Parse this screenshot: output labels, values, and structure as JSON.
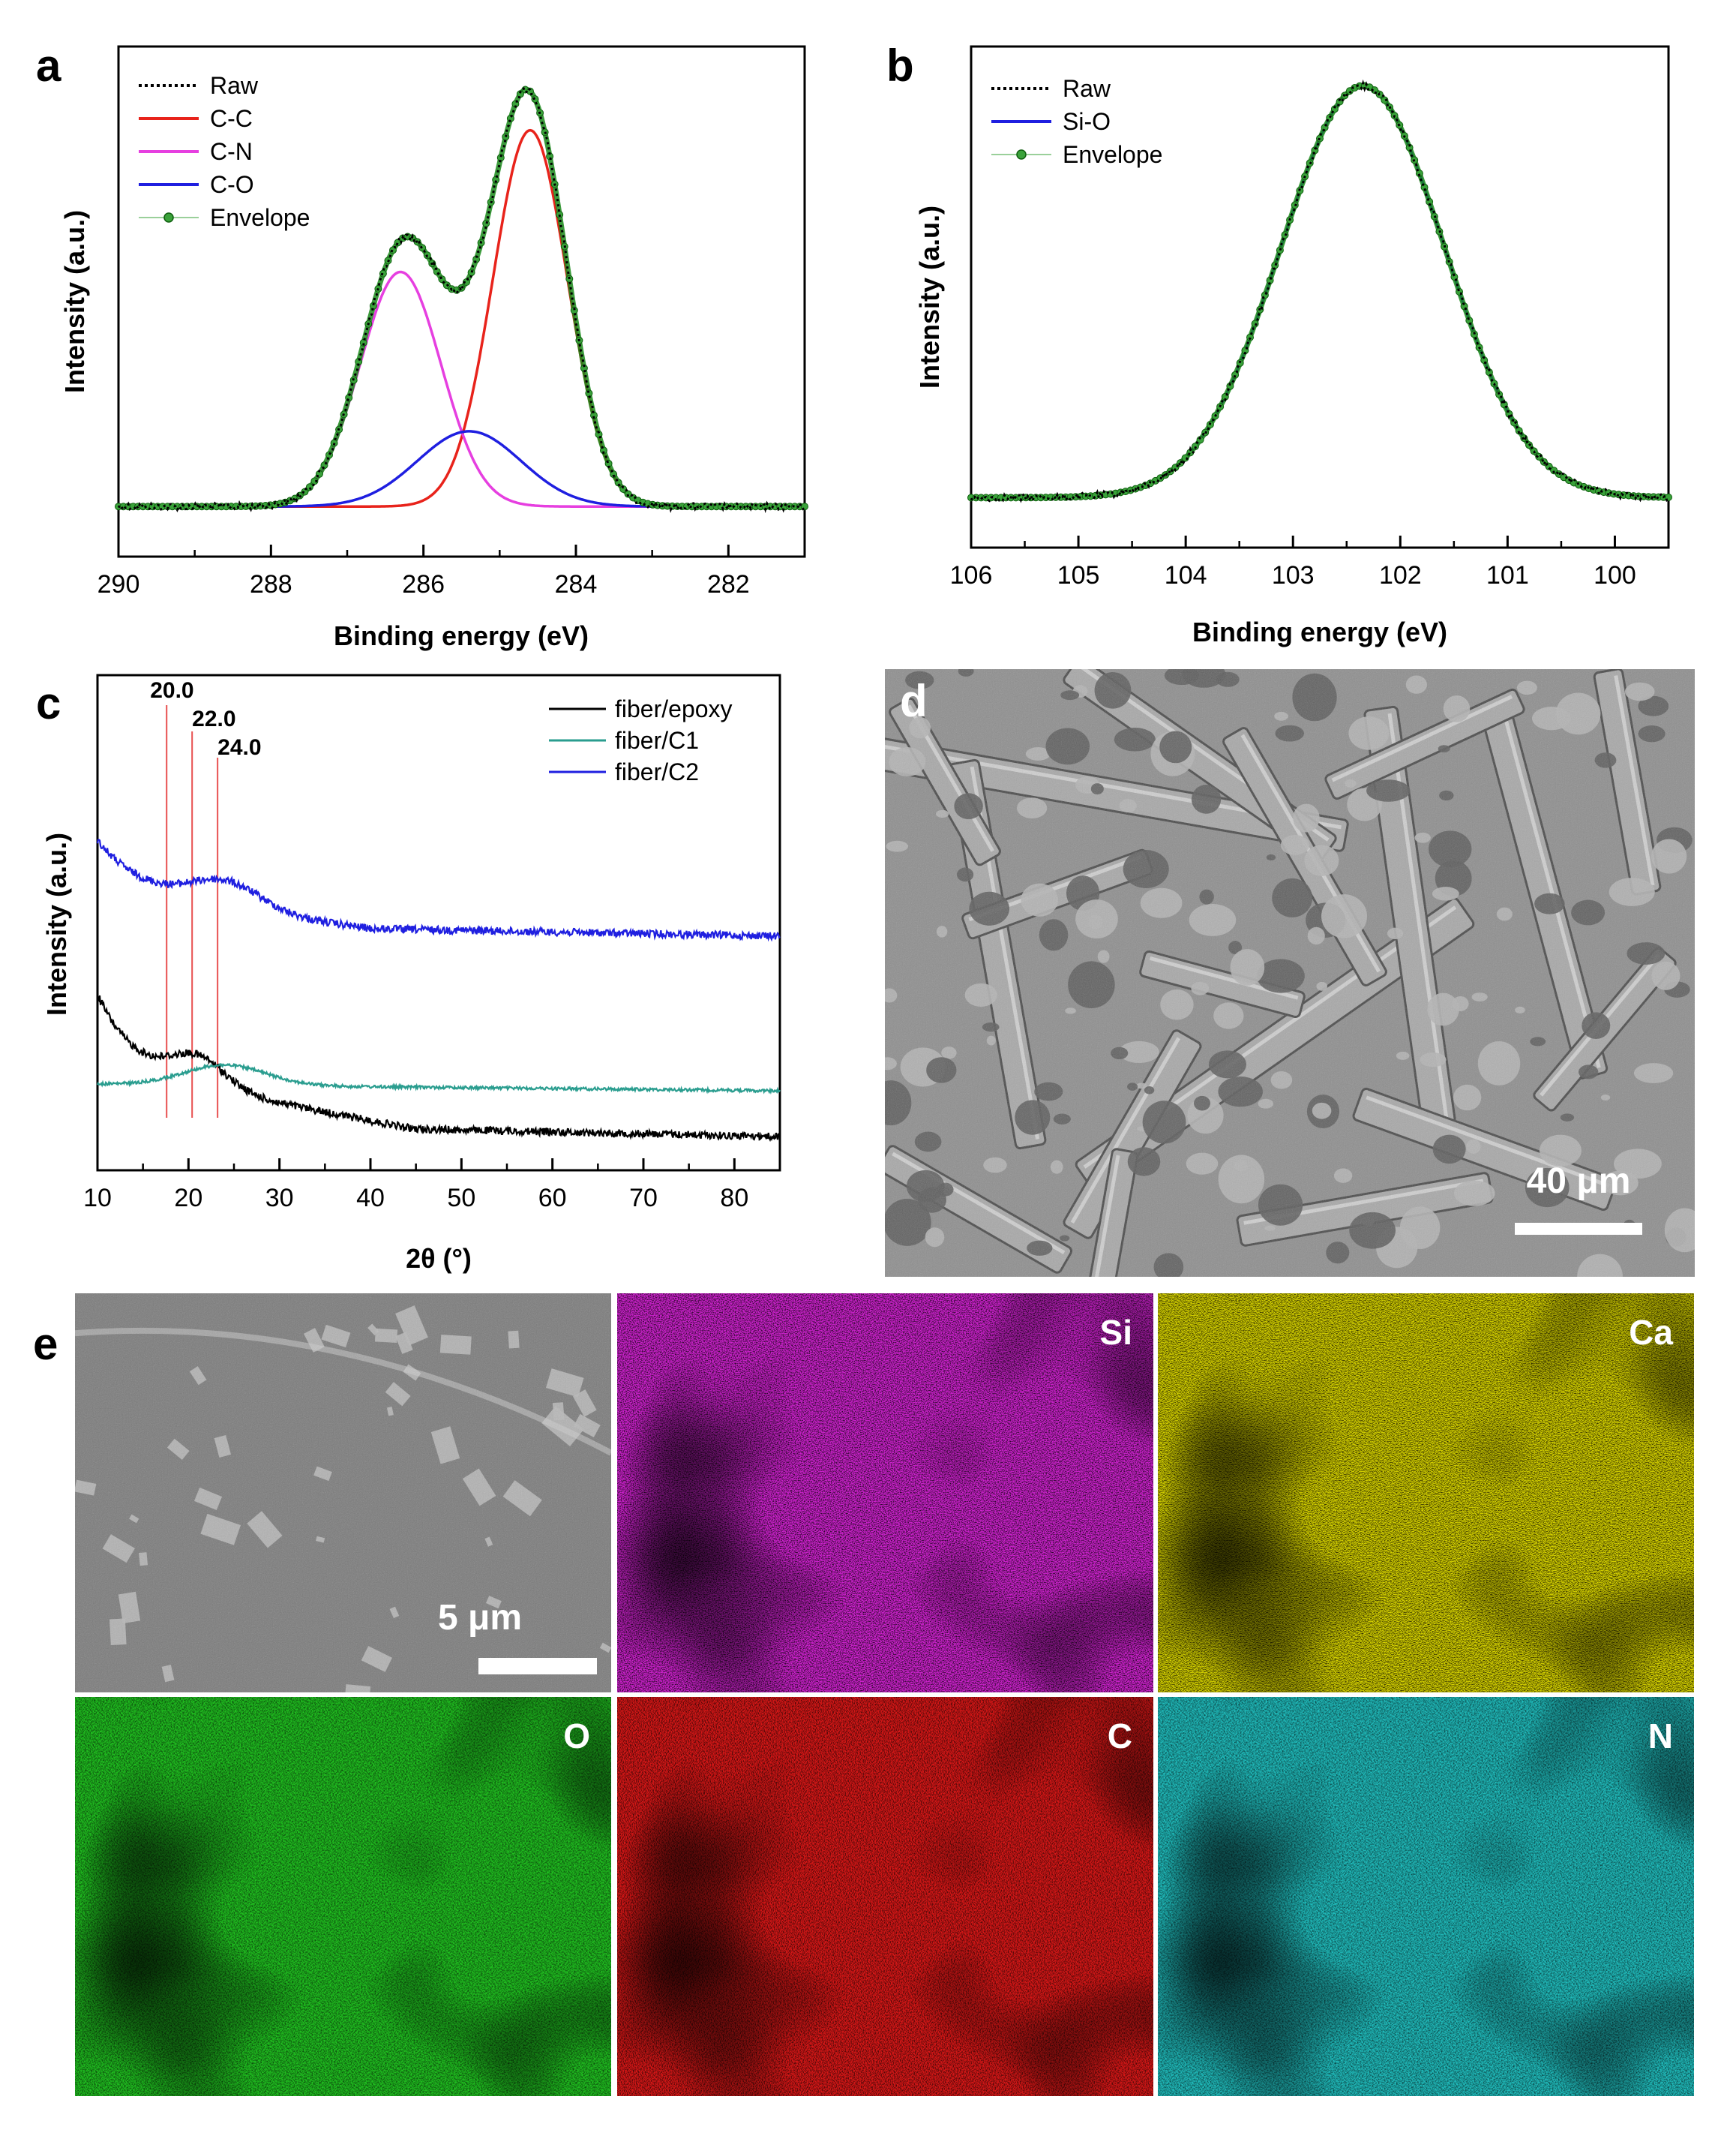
{
  "panels": {
    "a": "a",
    "b": "b",
    "c": "c",
    "d": "d",
    "e": "e"
  },
  "chart_data": [
    {
      "id": "a",
      "type": "line",
      "xlabel": "Binding energy (eV)",
      "ylabel": "Intensity (a.u.)",
      "xlim": [
        290,
        281
      ],
      "x_reversed": true,
      "xticks": [
        "290",
        "288",
        "286",
        "284",
        "282"
      ],
      "legend_position": "top-left",
      "legend": [
        "Raw",
        "C-C",
        "C-N",
        "C-O",
        "Envelope"
      ],
      "colors": {
        "Raw": "#000000",
        "C-C": "#e8231b",
        "C-N": "#e63fe0",
        "C-O": "#1f1fe0",
        "Envelope": "#1a8a1a"
      },
      "baseline": 0.02,
      "peaks": [
        {
          "name": "C-C",
          "center": 284.6,
          "amplitude": 0.85,
          "fwhm": 1.15
        },
        {
          "name": "C-N",
          "center": 286.3,
          "amplitude": 0.53,
          "fwhm": 1.25
        },
        {
          "name": "C-O",
          "center": 285.4,
          "amplitude": 0.17,
          "fwhm": 1.6
        }
      ]
    },
    {
      "id": "b",
      "type": "line",
      "xlabel": "Binding energy (eV)",
      "ylabel": "Intensity (a.u.)",
      "xlim": [
        106,
        99.5
      ],
      "x_reversed": true,
      "xticks": [
        "106",
        "105",
        "104",
        "103",
        "102",
        "101",
        "100"
      ],
      "legend_position": "top-left",
      "legend": [
        "Raw",
        "Si-O",
        "Envelope"
      ],
      "colors": {
        "Raw": "#000000",
        "Si-O": "#1f1fe0",
        "Envelope": "#1a8a1a"
      },
      "baseline": 0.02,
      "peaks": [
        {
          "name": "Si-O",
          "center": 102.35,
          "amplitude": 0.95,
          "fwhm": 1.8
        }
      ]
    },
    {
      "id": "c",
      "type": "line",
      "xlabel": "2θ (°)",
      "ylabel": "Intensity (a.u.)",
      "xlim": [
        10,
        85
      ],
      "xticks": [
        "10",
        "20",
        "30",
        "40",
        "50",
        "60",
        "70",
        "80"
      ],
      "legend_position": "top-right",
      "legend": [
        "fiber/epoxy",
        "fiber/C1",
        "fiber/C2"
      ],
      "colors": {
        "fiber/epoxy": "#000000",
        "fiber/C1": "#2a9d8f",
        "fiber/C2": "#1f1fe0"
      },
      "reference_lines": [
        20.0,
        22.0,
        24.0
      ],
      "reference_labels": [
        "20.0",
        "22.0",
        "24.0"
      ],
      "reference_color": "#e85050"
    }
  ],
  "images": {
    "d": {
      "scale_bar": "40 μm"
    },
    "e": {
      "scale_bar": "5 μm",
      "maps": [
        {
          "label": "",
          "color": "#9a9a9a"
        },
        {
          "label": "Si",
          "color": "#cc22cc"
        },
        {
          "label": "Ca",
          "color": "#d4d000"
        },
        {
          "label": "O",
          "color": "#22cc22"
        },
        {
          "label": "C",
          "color": "#e01818"
        },
        {
          "label": "N",
          "color": "#22c8c8"
        }
      ]
    }
  }
}
